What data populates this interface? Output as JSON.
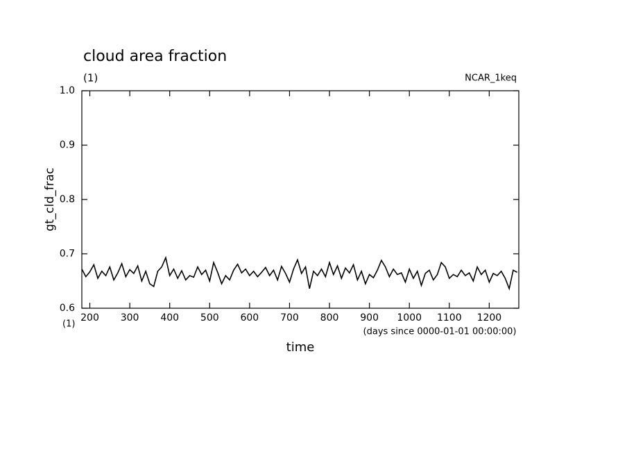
{
  "chart_data": {
    "type": "line",
    "title": "cloud area fraction",
    "subtitle": "(1)",
    "label_right": "NCAR_1keq",
    "ylabel": "gt_cld_frac",
    "xlabel": "time",
    "xunits": "(days since 0000-01-01 00:00:00)",
    "xlabel_units": "(1)",
    "xlim": [
      180,
      1274
    ],
    "xticks": [
      200,
      300,
      400,
      500,
      600,
      700,
      800,
      900,
      1000,
      1100,
      1200
    ],
    "ylim": [
      0.6,
      1.0
    ],
    "yticks": [
      0.6,
      0.7,
      0.8,
      0.9,
      {
        "value": 1.0,
        "label": "1.0"
      }
    ],
    "x": [
      180,
      190,
      200,
      210,
      220,
      230,
      240,
      250,
      260,
      270,
      280,
      290,
      300,
      310,
      320,
      330,
      340,
      350,
      360,
      370,
      380,
      390,
      400,
      410,
      420,
      430,
      440,
      450,
      460,
      470,
      480,
      490,
      500,
      510,
      520,
      530,
      540,
      550,
      560,
      570,
      580,
      590,
      600,
      610,
      620,
      630,
      640,
      650,
      660,
      670,
      680,
      690,
      700,
      710,
      720,
      730,
      740,
      750,
      760,
      770,
      780,
      790,
      800,
      810,
      820,
      830,
      840,
      850,
      860,
      870,
      880,
      890,
      900,
      910,
      920,
      930,
      940,
      950,
      960,
      970,
      980,
      990,
      1000,
      1010,
      1020,
      1030,
      1040,
      1050,
      1060,
      1070,
      1080,
      1090,
      1100,
      1110,
      1120,
      1130,
      1140,
      1150,
      1160,
      1170,
      1180,
      1190,
      1200,
      1210,
      1220,
      1230,
      1240,
      1250,
      1260,
      1270
    ],
    "series": [
      {
        "color": "#000000",
        "values": [
          0.672,
          0.658,
          0.667,
          0.68,
          0.655,
          0.668,
          0.66,
          0.676,
          0.652,
          0.665,
          0.682,
          0.658,
          0.671,
          0.664,
          0.678,
          0.65,
          0.668,
          0.645,
          0.64,
          0.668,
          0.676,
          0.693,
          0.66,
          0.672,
          0.655,
          0.669,
          0.652,
          0.66,
          0.657,
          0.676,
          0.662,
          0.67,
          0.65,
          0.684,
          0.666,
          0.645,
          0.66,
          0.652,
          0.67,
          0.681,
          0.665,
          0.672,
          0.66,
          0.668,
          0.658,
          0.666,
          0.675,
          0.66,
          0.67,
          0.652,
          0.677,
          0.664,
          0.648,
          0.672,
          0.689,
          0.664,
          0.676,
          0.636,
          0.668,
          0.66,
          0.672,
          0.658,
          0.684,
          0.662,
          0.678,
          0.655,
          0.674,
          0.665,
          0.68,
          0.652,
          0.668,
          0.645,
          0.662,
          0.656,
          0.67,
          0.688,
          0.676,
          0.658,
          0.672,
          0.662,
          0.665,
          0.648,
          0.672,
          0.655,
          0.668,
          0.642,
          0.664,
          0.67,
          0.652,
          0.662,
          0.684,
          0.676,
          0.655,
          0.662,
          0.658,
          0.67,
          0.66,
          0.665,
          0.65,
          0.676,
          0.662,
          0.67,
          0.648,
          0.664,
          0.66,
          0.668,
          0.655,
          0.636,
          0.67,
          0.666
        ]
      }
    ]
  }
}
